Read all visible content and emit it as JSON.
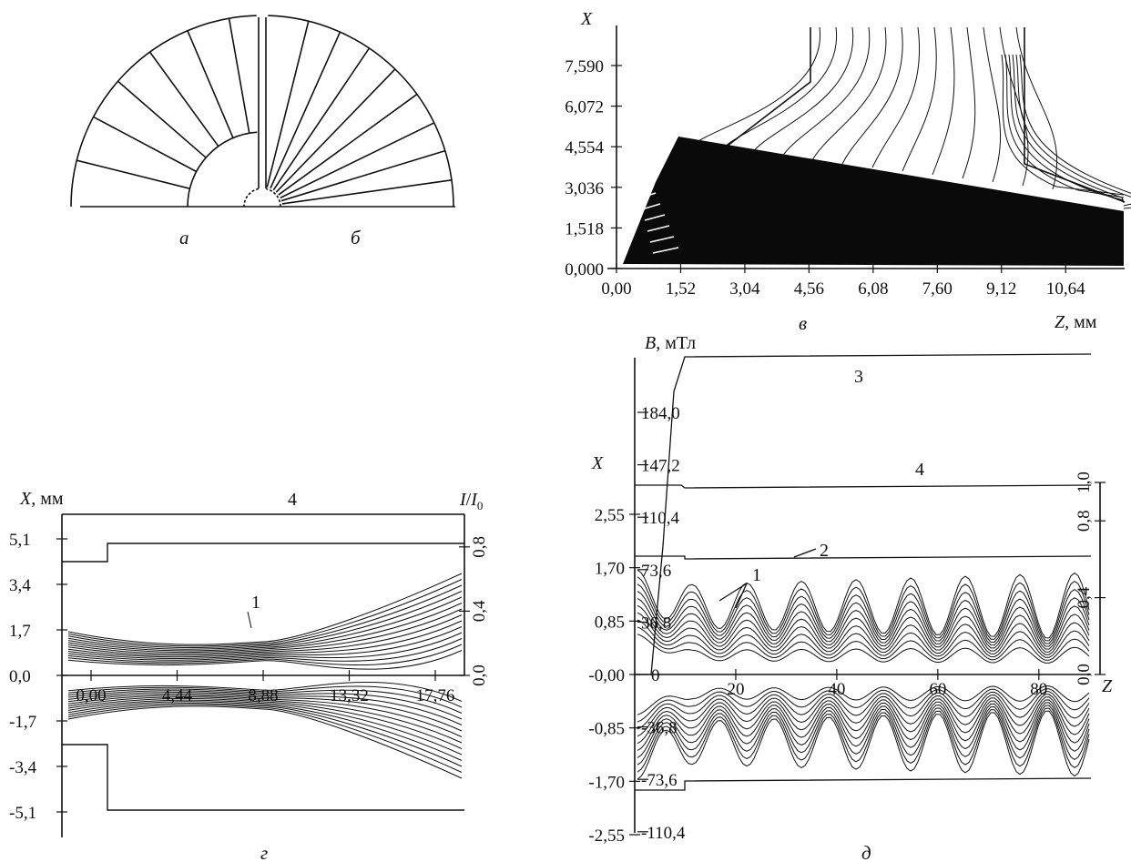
{
  "figure": {
    "panels": [
      {
        "id": "a",
        "caption": "а",
        "type": "diagram"
      },
      {
        "id": "b",
        "caption": "б",
        "type": "diagram"
      },
      {
        "id": "v",
        "caption": "в",
        "type": "plot",
        "y_axis_label": "X",
        "x_axis_label": "Z, мм",
        "y_ticks": [
          "0,000",
          "1,518",
          "3,036",
          "4,554",
          "6,072",
          "7,590"
        ],
        "x_ticks": [
          "0,00",
          "1,52",
          "3,04",
          "4,56",
          "6,08",
          "7,60",
          "9,12",
          "10,64"
        ]
      },
      {
        "id": "g",
        "caption": "г",
        "type": "plot",
        "y_axis_label": "X, мм",
        "right_axis_label": "I/I0",
        "y_ticks": [
          "5,1",
          "3,4",
          "1,7",
          "0,0",
          "-1,7",
          "-3,4",
          "-5,1"
        ],
        "x_ticks": [
          "0,00",
          "4,44",
          "8,88",
          "13,32",
          "17,76"
        ],
        "right_ticks": [
          "0,0",
          "0,4",
          "0,8"
        ],
        "curve_labels": [
          "1",
          "4"
        ]
      },
      {
        "id": "d",
        "caption": "д",
        "type": "plot",
        "y_axis_label_outer": "X",
        "y_axis_label_inner": "B, мТл",
        "x_axis_label": "Z",
        "x_ticks_outer": [
          "2,55",
          "1,70",
          "0,85",
          "-0,00",
          "-0,85",
          "-1,70",
          "-2,55"
        ],
        "b_ticks": [
          "184,0",
          "147,2",
          "110,4",
          "73,6",
          "36,8",
          "0",
          "-36,8",
          "-73,6",
          "-110,4"
        ],
        "z_ticks": [
          "20",
          "40",
          "60",
          "80"
        ],
        "right_ticks": [
          "0,0",
          "0,4",
          "0,8",
          "1,0"
        ],
        "curve_labels": [
          "1",
          "2",
          "3",
          "4"
        ]
      }
    ]
  },
  "chart_data": [
    {
      "type": "line",
      "panel": "в",
      "xlabel": "Z, мм",
      "ylabel": "X",
      "xlim": [
        0,
        12.0
      ],
      "ylim": [
        0,
        9.1
      ],
      "x_ticks": [
        0.0,
        1.52,
        3.04,
        4.56,
        6.08,
        7.6,
        9.12,
        10.64
      ],
      "y_ticks": [
        0.0,
        1.518,
        3.036,
        4.554,
        6.072,
        7.59
      ]
    },
    {
      "type": "line",
      "panel": "г",
      "xlabel": "",
      "ylabel": "X, мм",
      "y2label": "I/I0",
      "xlim": [
        0,
        22
      ],
      "ylim": [
        -5.1,
        5.1
      ],
      "x_ticks": [
        0.0,
        4.44,
        8.88,
        13.32,
        17.76
      ],
      "y_ticks": [
        5.1,
        3.4,
        1.7,
        0.0,
        -1.7,
        -3.4,
        -5.1
      ],
      "y2_ticks": [
        0.0,
        0.4,
        0.8
      ]
    },
    {
      "type": "line",
      "panel": "д",
      "xlabel": "Z",
      "ylabel": "X",
      "y2label": "B, мТл",
      "xlim": [
        0,
        94
      ],
      "ylim": [
        -2.55,
        2.55
      ],
      "x_ticks": [
        0,
        20,
        40,
        60,
        80
      ],
      "y_ticks": [
        2.55,
        1.7,
        0.85,
        0.0,
        -0.85,
        -1.7,
        -2.55
      ],
      "b_ticks": [
        184.0,
        147.2,
        110.4,
        73.6,
        36.8,
        0,
        -36.8,
        -73.6,
        -110.4
      ],
      "right_ticks": [
        0.0,
        0.4,
        0.8,
        1.0
      ]
    }
  ]
}
